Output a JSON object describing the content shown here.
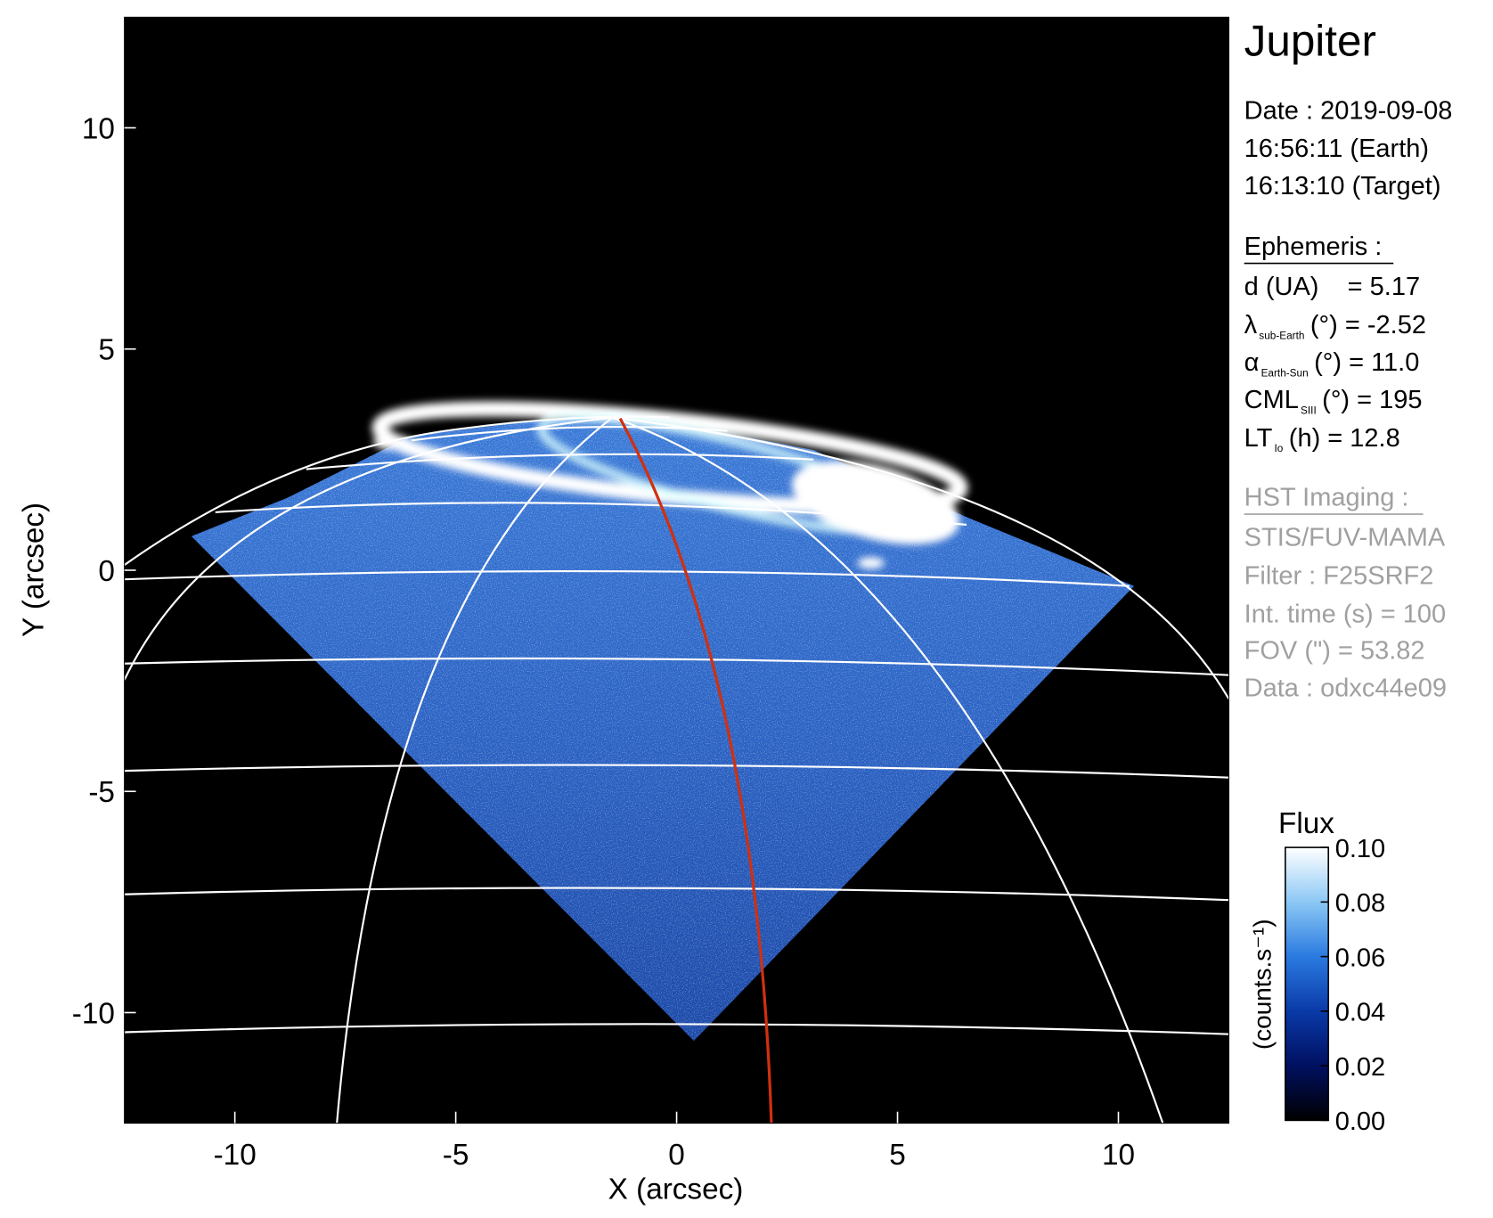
{
  "chart_data": {
    "type": "image",
    "xlabel": "X (arcsec)",
    "ylabel": "Y (arcsec)",
    "xlim": [
      -12.5,
      12.5
    ],
    "ylim": [
      -12.5,
      12.5
    ],
    "xticks": [
      -10,
      -5,
      0,
      5,
      10
    ],
    "yticks": [
      -10,
      -5,
      0,
      5,
      10
    ],
    "colorbar": {
      "label": "Flux",
      "unit": "(counts.s⁻¹)",
      "lim": [
        0,
        0.1
      ],
      "ticks": [
        {
          "value": 0,
          "label": "0.00"
        },
        0.02,
        0.04,
        0.06,
        0.08,
        {
          "value": 0.1,
          "label": "0.10"
        }
      ],
      "colors": [
        "#000000",
        "#001060",
        "#0a3aa8",
        "#2a7ae0",
        "#8cc8f5",
        "#ffffff"
      ]
    }
  },
  "info": {
    "target": "Jupiter",
    "date": [
      "Date : 2019-09-08",
      "16:56:11 (Earth)",
      "16:13:10 (Target)"
    ],
    "ephemeris_title": "Ephemeris :",
    "ephemeris": [
      {
        "symbol": "d (UA)    = 5.17"
      },
      {
        "symbol": "λ",
        "sub": "sub-Earth",
        "rest": "(°) = -2.52"
      },
      {
        "symbol": "α",
        "sub": "Earth-Sun",
        "rest": "(°) = 11.0"
      },
      {
        "symbol": "CML",
        "sub": "SIII",
        "rest": "(°) = 195"
      },
      {
        "symbol": "LT",
        "sub": "Io",
        "rest": "(h) = 12.8"
      }
    ],
    "imaging_title": "HST Imaging :",
    "imaging": [
      "STIS/FUV-MAMA",
      "Filter : F25SRF2",
      "Int. time (s) = 100",
      "FOV (\") = 53.82",
      "Data : odxc44e09"
    ]
  }
}
